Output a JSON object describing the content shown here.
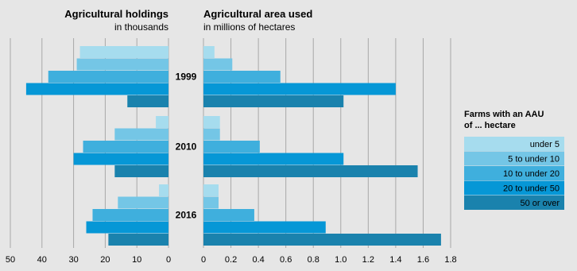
{
  "chart_data": [
    {
      "type": "bar",
      "orientation": "horizontal",
      "title": "Agricultural holdings",
      "subtitle": "in thousands",
      "categories": [
        "1999",
        "2010",
        "2016"
      ],
      "xlim": [
        0,
        50
      ],
      "xticks": [
        50,
        40,
        30,
        20,
        10,
        0
      ],
      "reversed": true,
      "grid": true,
      "series": [
        {
          "name": "under 5",
          "values": [
            28,
            4,
            3
          ]
        },
        {
          "name": "5 to under 10",
          "values": [
            29,
            17,
            16
          ]
        },
        {
          "name": "10 to under 20",
          "values": [
            38,
            27,
            24
          ]
        },
        {
          "name": "20 to under 50",
          "values": [
            45,
            30,
            26
          ]
        },
        {
          "name": "50 or over",
          "values": [
            13,
            17,
            19
          ]
        }
      ]
    },
    {
      "type": "bar",
      "orientation": "horizontal",
      "title": "Agricultural area used",
      "subtitle": "in millions of hectares",
      "categories": [
        "1999",
        "2010",
        "2016"
      ],
      "xlim": [
        0,
        1.8
      ],
      "xticks": [
        "0",
        "0.2",
        "0.4",
        "0.6",
        "0.8",
        "1.0",
        "1.2",
        "1.4",
        "1.6",
        "1.8"
      ],
      "grid": true,
      "series": [
        {
          "name": "under 5",
          "values": [
            0.08,
            0.12,
            0.11
          ]
        },
        {
          "name": "5 to under 10",
          "values": [
            0.21,
            0.12,
            0.11
          ]
        },
        {
          "name": "10 to under 20",
          "values": [
            0.56,
            0.41,
            0.37
          ]
        },
        {
          "name": "20 to under 50",
          "values": [
            1.4,
            1.02,
            0.89
          ]
        },
        {
          "name": "50 or over",
          "values": [
            1.02,
            1.56,
            1.73
          ]
        }
      ]
    }
  ],
  "legend": {
    "title_line1": "Farms with an AAU",
    "title_line2": "of ... hectare",
    "placement": "right",
    "items": [
      "under 5",
      "5 to under 10",
      "10 to under 20",
      "20 to under 50",
      "50 or over"
    ]
  },
  "colors": {
    "background": "#e6e6e6",
    "grid": "#a8a8a8",
    "series": [
      "#a6dcee",
      "#74c6e6",
      "#3fafdd",
      "#0697d6",
      "#1a82ad"
    ]
  }
}
